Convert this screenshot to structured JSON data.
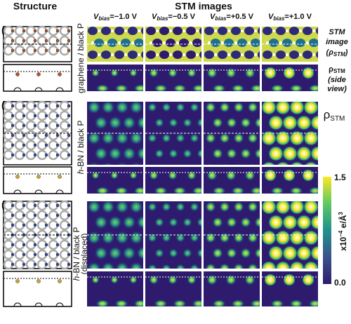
{
  "headers": {
    "structure": "Structure",
    "stm": "STM images"
  },
  "bias": [
    {
      "symbol": "V",
      "sub": "bias",
      "value": "=−1.0 V"
    },
    {
      "symbol": "V",
      "sub": "bias",
      "value": "=−0.5 V"
    },
    {
      "symbol": "V",
      "sub": "bias",
      "value": "=+0.5 V"
    },
    {
      "symbol": "V",
      "sub": "bias",
      "value": "=+1.0 V"
    }
  ],
  "rows": [
    {
      "tag": "(a)",
      "label": "graphene / black P"
    },
    {
      "tag": "(b)",
      "italic": "h",
      "rest": "-BN / black P"
    },
    {
      "tag": "(c)",
      "italic": "h",
      "rest": "-BN / black P",
      "label2": "(displaced)"
    }
  ],
  "notes": {
    "top": {
      "line1": "STM",
      "line2": "image",
      "open": "(ρ",
      "sub": "STM",
      "close": ")"
    },
    "side": {
      "rho": "ρ",
      "sub": "STM",
      "line2": "(side",
      "line3": "view)"
    }
  },
  "colorbar": {
    "rho": "ρ",
    "sub": "STM",
    "max": "1.5",
    "min": "0.0",
    "unit_a": "x10",
    "unit_exp": "−4",
    "unit_b": " e/Å",
    "unit_exp2": "3"
  }
}
